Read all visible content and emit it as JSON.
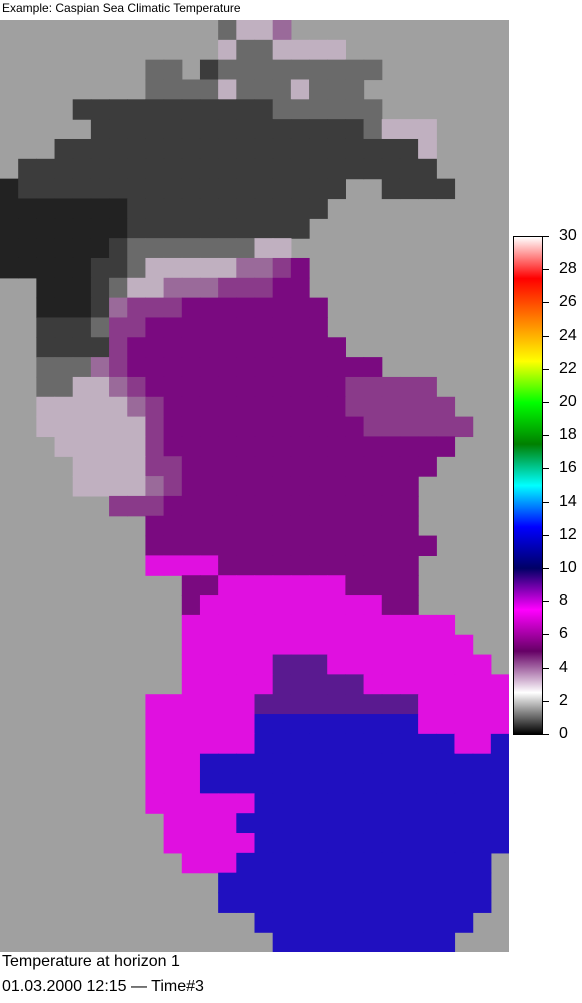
{
  "title": "Example: Caspian Sea Climatic Temperature",
  "map": {
    "background_color": "#a0a0a0",
    "value_min": 0,
    "value_max": 30,
    "grid_cols": 28,
    "rows": [
      "............2334............",
      "............3223333.........",
      "........22.1222222222.......",
      "........222232223222........",
      "....11111111111222222.......",
      ".....1111111111111112333....",
      "...111111111111111111113....",
      ".11111111111111111111111....",
      "0111111111111111111..1111...",
      "000000011111111111..........",
      "00000001111111111...........",
      "0000001222222233............",
      "00000112333334456...........",
      "..000123344455566...........",
      "..0001455566666666..........",
      "..1112556666666666..........",
      "..11115666666666666.........",
      "..2224566666666666666.......",
      "..2233456666666666655555....",
      "..33333456666666666555555...",
      "..333333566666666666555555..",
      "...3333356666666666666666...",
      "....33335566666666666666....",
      "....3333456666666666666.....",
      "......55566666666666666.....",
      "........666666666666666.....",
      "........6666666666666666....",
      "........777766666666666.....",
      "..........6677777776666.....",
      "..........6777777777766.....",
      "..........777777777777777...",
      "..........7777777777777777..",
      "..........77777888777777777.",
      "..........7777788888777777777",
      "........777777888888888777777",
      "........77777799999999977777",
      "........7777779999999999977999",
      "........7779999999999999999999",
      "........777999999999999999999",
      "........777777999999999999999",
      ".........7777999999999999999..",
      ".........7777799999999999999..",
      "..........77799999999999999...",
      "............999999999999999...",
      "............999999999999999...",
      "..............999999999999....",
      "...............9999999999....."
    ],
    "level_colors": {
      "0": "#222222",
      "1": "#3c3c3c",
      "2": "#6a6a6a",
      "3": "#c0b0c0",
      "4": "#9a6a9a",
      "5": "#8a3a8a",
      "6": "#7a0a80",
      "7": "#e010e0",
      "8": "#5a1a90",
      "9": "#2010c0"
    }
  },
  "colorbar": {
    "min": 0,
    "max": 30,
    "tick_labels": [
      "30",
      "28",
      "26",
      "24",
      "22",
      "20",
      "18",
      "16",
      "14",
      "12",
      "10",
      "8",
      "6",
      "4",
      "2",
      "0"
    ],
    "stops": [
      "#000000",
      "#ffffff",
      "#660066",
      "#ff00ff",
      "#000066",
      "#0000ff",
      "#00ffff",
      "#008000",
      "#00ff00",
      "#ffff00",
      "#ff8000",
      "#ff0000",
      "#ffffff"
    ]
  },
  "caption": {
    "line1": "Temperature at horizon 1",
    "line2": "01.03.2000 12:15 — Time#3"
  }
}
